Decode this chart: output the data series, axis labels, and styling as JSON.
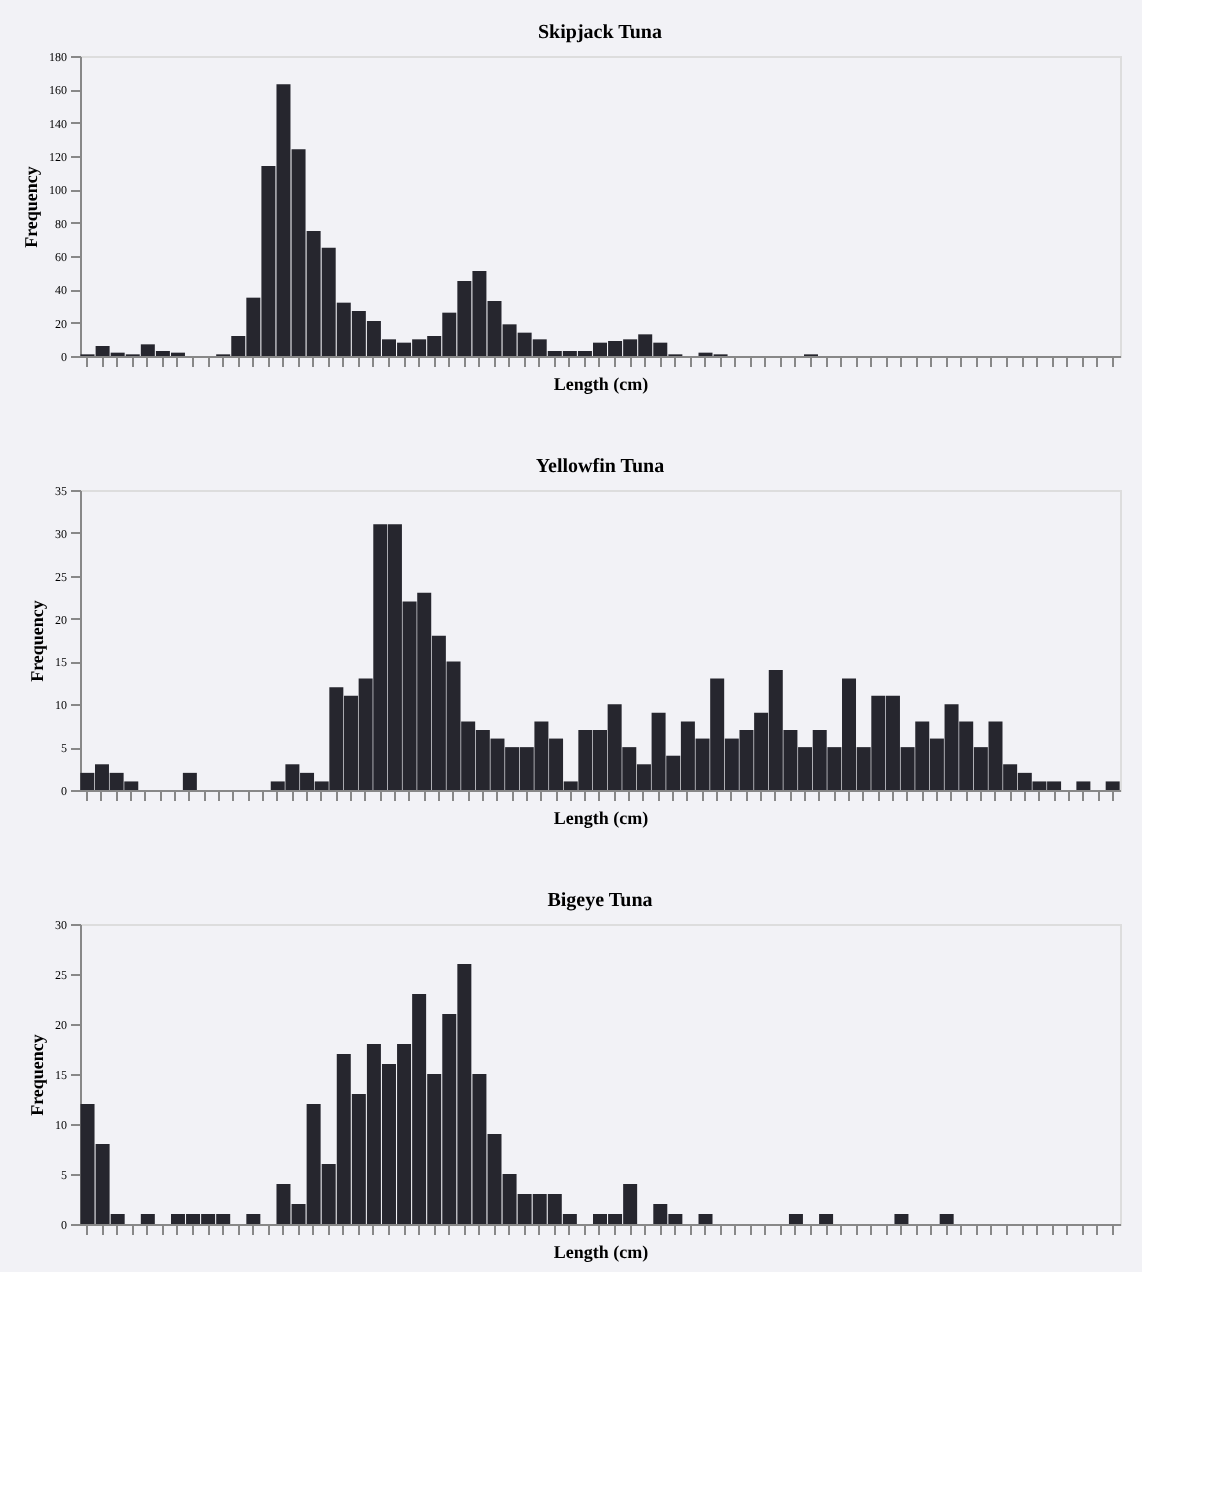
{
  "chart_data": [
    {
      "type": "bar",
      "title": "Skipjack Tuna",
      "xlabel": "Length (cm)",
      "ylabel": "Frequency",
      "color": "#26262e",
      "tick_labels": "y",
      "ylim": [
        0,
        180
      ],
      "yticks": [
        0,
        20,
        40,
        60,
        80,
        100,
        120,
        140,
        160,
        180
      ],
      "categories": [
        null,
        null,
        null,
        null,
        null,
        null,
        null,
        null,
        null,
        null,
        null,
        null,
        null,
        null,
        null,
        null,
        null,
        null,
        null,
        null,
        null,
        null,
        null,
        null,
        null,
        null,
        null,
        null,
        null,
        null,
        null,
        null,
        null,
        null,
        null,
        null,
        null,
        null,
        null,
        null,
        null,
        null,
        null,
        null,
        null,
        null,
        null,
        null,
        null,
        null,
        null,
        null,
        null,
        null,
        null,
        null,
        null,
        null,
        null,
        null,
        null,
        null,
        null,
        null,
        null,
        null,
        null,
        null,
        null
      ],
      "values": [
        1,
        6,
        2,
        1,
        7,
        3,
        2,
        0,
        0,
        1,
        12,
        35,
        114,
        163,
        124,
        75,
        65,
        32,
        27,
        21,
        10,
        8,
        10,
        12,
        26,
        45,
        51,
        33,
        19,
        14,
        10,
        3,
        3,
        3,
        8,
        9,
        10,
        13,
        8,
        1,
        0,
        2,
        1,
        0,
        0,
        0,
        0,
        0,
        1,
        0,
        0,
        0,
        0,
        0,
        0,
        0,
        0,
        0,
        0,
        0,
        0,
        0,
        0,
        0,
        0,
        0,
        0,
        0,
        0
      ]
    },
    {
      "type": "bar",
      "title": "Yellowfin Tuna",
      "xlabel": "Length (cm)",
      "ylabel": "Frequency",
      "color": "#26262e",
      "tick_labels": "y",
      "ylim": [
        0,
        35
      ],
      "yticks": [
        0,
        5,
        10,
        15,
        20,
        25,
        30,
        35
      ],
      "categories": [
        null,
        null,
        null,
        null,
        null,
        null,
        null,
        null,
        null,
        null,
        null,
        null,
        null,
        null,
        null,
        null,
        null,
        null,
        null,
        null,
        null,
        null,
        null,
        null,
        null,
        null,
        null,
        null,
        null,
        null,
        null,
        null,
        null,
        null,
        null,
        null,
        null,
        null,
        null,
        null,
        null,
        null,
        null,
        null,
        null,
        null,
        null,
        null,
        null,
        null,
        null,
        null,
        null,
        null,
        null,
        null,
        null,
        null,
        null,
        null,
        null,
        null,
        null,
        null,
        null,
        null,
        null,
        null,
        null,
        null,
        null
      ],
      "values": [
        2,
        3,
        2,
        1,
        0,
        0,
        0,
        2,
        0,
        0,
        0,
        0,
        0,
        1,
        3,
        2,
        1,
        12,
        11,
        13,
        31,
        31,
        22,
        23,
        18,
        15,
        8,
        7,
        6,
        5,
        5,
        8,
        6,
        1,
        7,
        7,
        10,
        5,
        3,
        9,
        4,
        8,
        6,
        13,
        6,
        7,
        9,
        14,
        7,
        5,
        7,
        5,
        13,
        5,
        11,
        11,
        5,
        8,
        6,
        10,
        8,
        5,
        8,
        3,
        2,
        1,
        1,
        0,
        1,
        0,
        1
      ]
    },
    {
      "type": "bar",
      "title": "Bigeye Tuna",
      "xlabel": "Length (cm)",
      "ylabel": "Frequency",
      "color": "#26262e",
      "tick_labels": "y",
      "ylim": [
        0,
        30
      ],
      "yticks": [
        0,
        5,
        10,
        15,
        20,
        25,
        30
      ],
      "categories": [
        null,
        null,
        null,
        null,
        null,
        null,
        null,
        null,
        null,
        null,
        null,
        null,
        null,
        null,
        null,
        null,
        null,
        null,
        null,
        null,
        null,
        null,
        null,
        null,
        null,
        null,
        null,
        null,
        null,
        null,
        null,
        null,
        null,
        null,
        null,
        null,
        null,
        null,
        null,
        null,
        null,
        null,
        null,
        null,
        null,
        null,
        null,
        null,
        null,
        null,
        null,
        null,
        null,
        null,
        null,
        null,
        null,
        null,
        null,
        null,
        null,
        null,
        null,
        null,
        null,
        null,
        null,
        null,
        null
      ],
      "values": [
        12,
        8,
        1,
        0,
        1,
        0,
        1,
        1,
        1,
        1,
        0,
        1,
        0,
        4,
        2,
        12,
        6,
        17,
        13,
        18,
        16,
        18,
        23,
        15,
        21,
        26,
        15,
        9,
        5,
        3,
        3,
        3,
        1,
        0,
        1,
        1,
        4,
        0,
        2,
        1,
        0,
        1,
        0,
        0,
        0,
        0,
        0,
        1,
        0,
        1,
        0,
        0,
        0,
        0,
        1,
        0,
        0,
        1,
        0,
        0,
        0,
        0,
        0,
        0,
        0,
        0,
        0,
        0,
        0
      ]
    }
  ]
}
